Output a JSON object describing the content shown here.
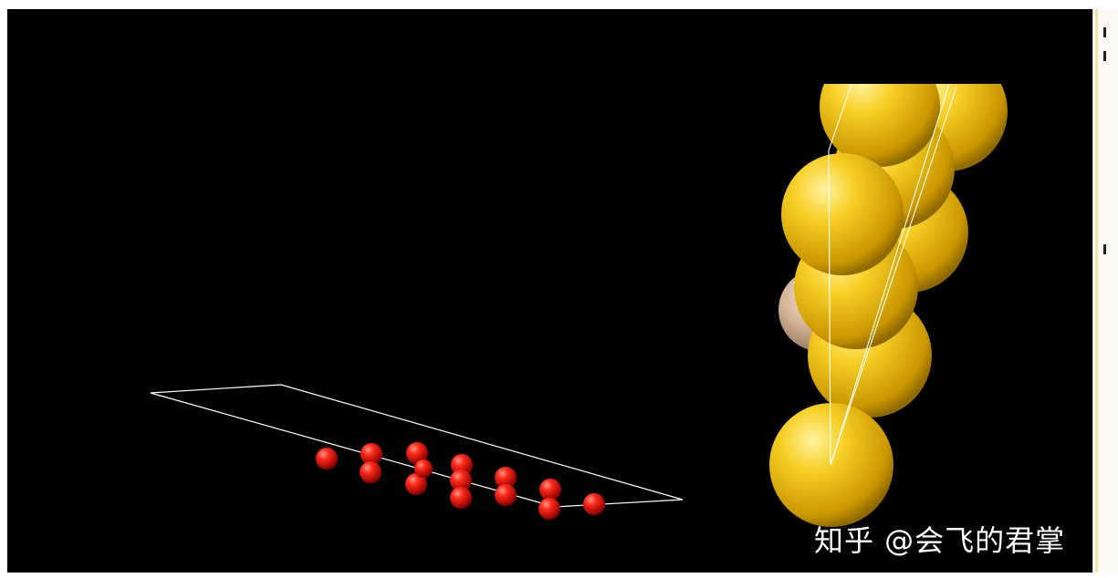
{
  "scene": {
    "background": "#000000",
    "left_cluster": {
      "atom_color": "#e81010",
      "atom_count": 14,
      "cell_edges": "#ffffff"
    },
    "right_cluster": {
      "primary_color": "#f2c21a",
      "secondary_color": "#c9a98d",
      "gold_atom_count": 10,
      "beige_atom_count": 1
    }
  },
  "watermark": {
    "text": "知乎 @会飞的君掌"
  }
}
